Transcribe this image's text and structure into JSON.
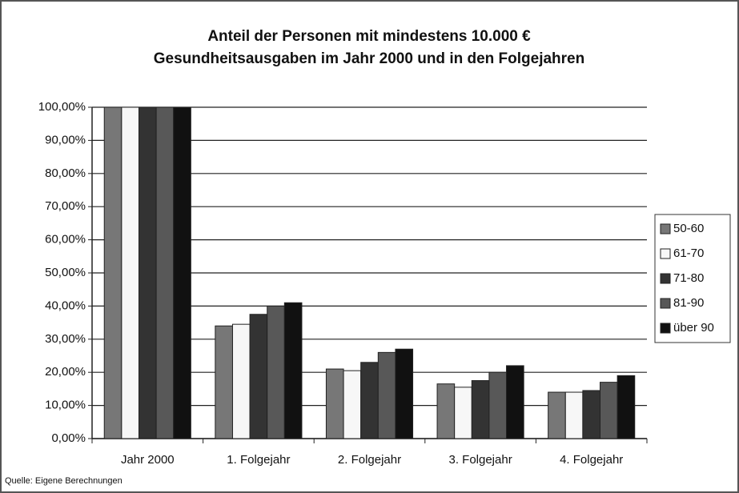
{
  "chart_data": {
    "type": "bar",
    "title": [
      "Anteil der Personen mit mindestens 10.000 €",
      "Gesundheitsausgaben im Jahr 2000 und in den Folgejahren"
    ],
    "source": "Quelle: Eigene Berechnungen",
    "categories": [
      "Jahr 2000",
      "1. Folgejahr",
      "2. Folgejahr",
      "3. Folgejahr",
      "4. Folgejahr"
    ],
    "series": [
      {
        "name": "50-60",
        "color": "#777777",
        "values": [
          100,
          34,
          21,
          16.5,
          14
        ]
      },
      {
        "name": "61-70",
        "color": "#f7f7f7",
        "values": [
          100,
          34.5,
          20.5,
          15.5,
          14
        ]
      },
      {
        "name": "71-80",
        "color": "#333333",
        "values": [
          100,
          37.5,
          23,
          17.5,
          14.5
        ]
      },
      {
        "name": "81-90",
        "color": "#585858",
        "values": [
          100,
          40,
          26,
          20,
          17
        ]
      },
      {
        "name": "über 90",
        "color": "#111111",
        "values": [
          100,
          41,
          27,
          22,
          19
        ]
      }
    ],
    "ylim": [
      0,
      100
    ],
    "yticks": [
      {
        "value": 0,
        "label": "0,00%"
      },
      {
        "value": 10,
        "label": "10,00%"
      },
      {
        "value": 20,
        "label": "20,00%"
      },
      {
        "value": 30,
        "label": "30,00%"
      },
      {
        "value": 40,
        "label": "40,00%"
      },
      {
        "value": 50,
        "label": "50,00%"
      },
      {
        "value": 60,
        "label": "60,00%"
      },
      {
        "value": 70,
        "label": "70,00%"
      },
      {
        "value": 80,
        "label": "80,00%"
      },
      {
        "value": 90,
        "label": "90,00%"
      },
      {
        "value": 100,
        "label": "100,00%"
      }
    ],
    "grid": true,
    "legend": "right"
  }
}
